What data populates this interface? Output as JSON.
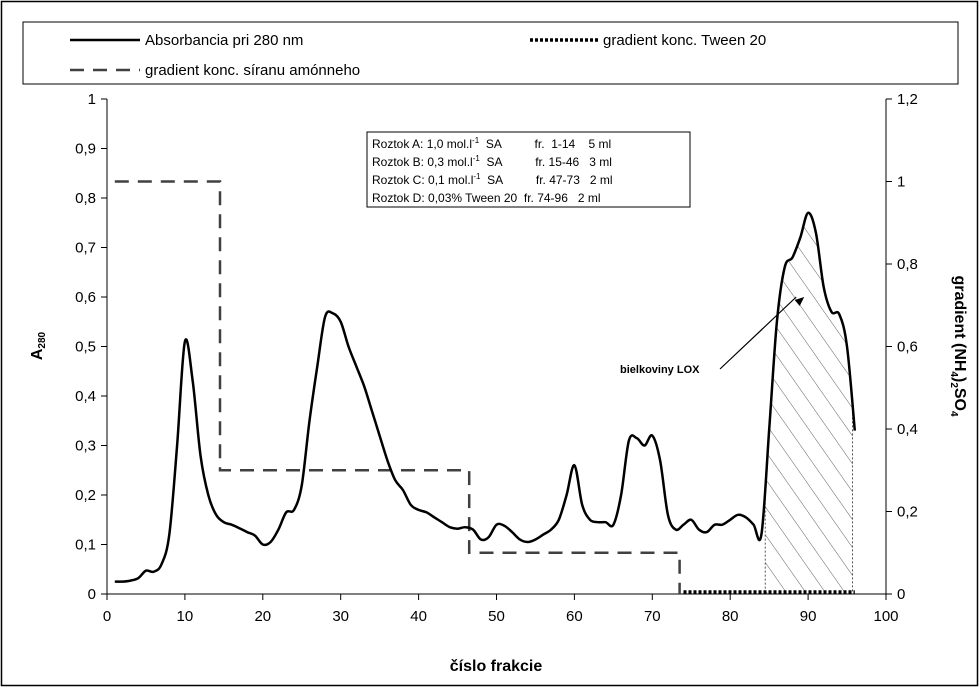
{
  "chart_data": {
    "type": "line",
    "xlabel": "číslo frakcie",
    "ylabel": "A280",
    "ylabel_main": "A",
    "ylabel_sub": "280",
    "y2label": "gradient (NH4)2SO4",
    "xlim": [
      0,
      100
    ],
    "ylim": [
      0,
      1
    ],
    "y2lim": [
      0,
      1.2
    ],
    "x_ticks": [
      "0",
      "10",
      "20",
      "30",
      "40",
      "50",
      "60",
      "70",
      "80",
      "90",
      "100"
    ],
    "y_ticks": [
      "0",
      "0,1",
      "0,2",
      "0,3",
      "0,4",
      "0,5",
      "0,6",
      "0,7",
      "0,8",
      "0,9",
      "1"
    ],
    "y2_ticks": [
      "0",
      "0,2",
      "0,4",
      "0,6",
      "0,8",
      "1",
      "1,2"
    ],
    "grid": false,
    "legend_position": "top",
    "series": [
      {
        "name": "Absorbancia pri 280 nm",
        "style": "solid",
        "color": "#000000",
        "axis": "left",
        "x": [
          1,
          2,
          3,
          4,
          5,
          6,
          7,
          8,
          9,
          10,
          11,
          12,
          13,
          14,
          15,
          16,
          17,
          18,
          19,
          20,
          21,
          22,
          23,
          24,
          25,
          26,
          27,
          28,
          29,
          30,
          31,
          32,
          33,
          34,
          35,
          36,
          37,
          38,
          39,
          40,
          41,
          42,
          43,
          44,
          45,
          46,
          47,
          48,
          49,
          50,
          51,
          52,
          53,
          54,
          55,
          56,
          57,
          58,
          59,
          60,
          61,
          62,
          63,
          64,
          65,
          66,
          67,
          68,
          69,
          70,
          71,
          72,
          73,
          74,
          75,
          76,
          77,
          78,
          79,
          80,
          81,
          82,
          83,
          84,
          85,
          86,
          87,
          88,
          89,
          90,
          91,
          92,
          93,
          94,
          95,
          96
        ],
        "y": [
          0.025,
          0.025,
          0.027,
          0.032,
          0.047,
          0.045,
          0.06,
          0.12,
          0.3,
          0.51,
          0.43,
          0.28,
          0.2,
          0.16,
          0.145,
          0.14,
          0.133,
          0.125,
          0.118,
          0.1,
          0.105,
          0.13,
          0.165,
          0.17,
          0.22,
          0.35,
          0.46,
          0.56,
          0.567,
          0.55,
          0.5,
          0.46,
          0.42,
          0.37,
          0.32,
          0.27,
          0.23,
          0.21,
          0.18,
          0.17,
          0.165,
          0.155,
          0.145,
          0.135,
          0.132,
          0.135,
          0.13,
          0.11,
          0.115,
          0.14,
          0.138,
          0.125,
          0.11,
          0.105,
          0.11,
          0.12,
          0.13,
          0.15,
          0.2,
          0.26,
          0.18,
          0.15,
          0.145,
          0.145,
          0.14,
          0.2,
          0.31,
          0.315,
          0.3,
          0.32,
          0.27,
          0.16,
          0.13,
          0.14,
          0.15,
          0.13,
          0.125,
          0.14,
          0.14,
          0.15,
          0.16,
          0.155,
          0.14,
          0.12,
          0.33,
          0.55,
          0.66,
          0.68,
          0.72,
          0.77,
          0.73,
          0.62,
          0.57,
          0.565,
          0.5,
          0.33
        ]
      },
      {
        "name": "gradient konc. síranu amónneho",
        "style": "dashed",
        "color": "#404040",
        "axis": "right",
        "x": [
          1,
          14.5,
          14.5,
          46.5,
          46.5,
          73.5,
          73.5
        ],
        "y": [
          1,
          1,
          0.3,
          0.3,
          0.1,
          0.1,
          0
        ]
      },
      {
        "name": "gradient konc. Tween 20",
        "style": "dotted",
        "color": "#000000",
        "axis": "right",
        "x": [
          74,
          96
        ],
        "y": [
          0,
          0
        ]
      }
    ],
    "shaded_region": {
      "x_start": 84.5,
      "x_end": 95.7,
      "pattern": "hatched"
    },
    "annotations": {
      "lox_label": "bielkoviny LOX",
      "arrow_target_x": 89.5,
      "arrow_target_y": 0.6
    },
    "info_table": [
      "Roztok A: 1,0 mol.l-1 SA fr. 1-14 5 ml",
      "Roztok B: 0,3 mol.l-1 SA fr. 15-46 3 ml",
      "Roztok C: 0,1 mol.l-1 SA fr. 47-73 2 ml",
      "Roztok D: 0,03% Tween 20 fr. 74-96 2 ml"
    ]
  }
}
